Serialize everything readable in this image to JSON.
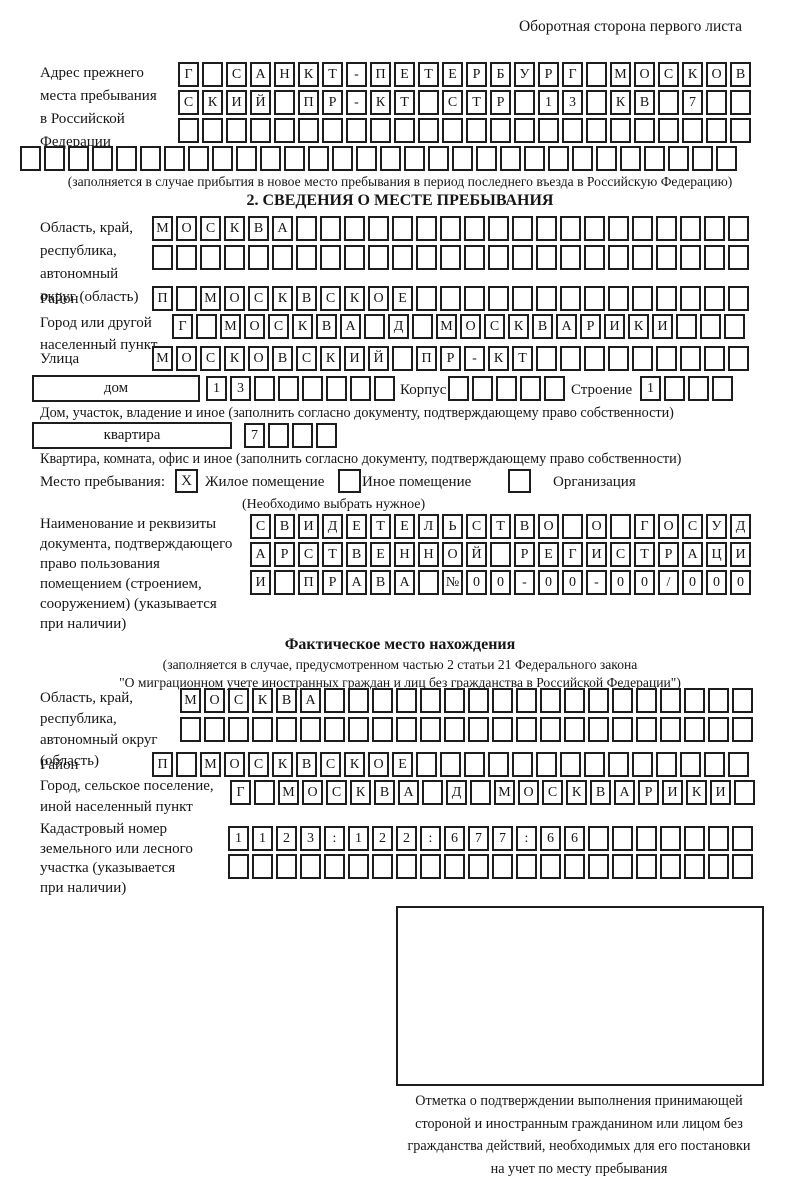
{
  "header": {
    "note": "Оборотная сторона первого листа"
  },
  "prev_address": {
    "label_lines": [
      "Адрес прежнего",
      "места пребывания",
      "в Российской",
      "Федерации"
    ],
    "rows": [
      {
        "text": "Г САНКТ-ПЕТЕРБУРГ МОСКОВ",
        "length": 24
      },
      {
        "text": "СКИЙ ПР-КТ СТР 13 КВ 7",
        "length": 24
      },
      {
        "text": "",
        "length": 24
      },
      {
        "text": "",
        "length": 30
      }
    ],
    "note": "(заполняется в случае прибытия в новое место пребывания в период последнего въезда в Российскую Федерацию)"
  },
  "section2": {
    "title": "2. СВЕДЕНИЯ О МЕСТЕ ПРЕБЫВАНИЯ",
    "region": {
      "label_lines": [
        "Область, край,",
        "республика,",
        "автономный",
        "округ (область)"
      ],
      "rows": [
        {
          "text": "МОСКВА",
          "length": 25
        },
        {
          "text": "",
          "length": 25
        }
      ]
    },
    "district": {
      "label": "Район",
      "row": {
        "text": "П МОСКВСКОЕ",
        "length": 25
      }
    },
    "city": {
      "label_lines": [
        "Город или другой",
        "населенный пункт"
      ],
      "row": {
        "text": "Г МОСКВА Д МОСКВАРИКИ",
        "length": 24
      }
    },
    "street": {
      "label": "Улица",
      "row": {
        "text": "МОСКОВСКИЙ ПР-КТ",
        "length": 25
      }
    },
    "house": {
      "box_label": "дом",
      "cells": {
        "text": "13",
        "length": 8
      },
      "korpus_label": "Корпус",
      "korpus_cells": {
        "text": "",
        "length": 5
      },
      "stroenie_label": "Строение",
      "stroenie_cells": {
        "text": "1",
        "length": 4
      }
    },
    "house_note": "Дом, участок, владение и иное (заполнить согласно документу, подтверждающему право собственности)",
    "apartment": {
      "box_label": "квартира",
      "cells": {
        "text": "7",
        "length": 4
      }
    },
    "apartment_note": "Квартира, комната, офис и иное (заполнить согласно документу, подтверждающему право собственности)",
    "stay_type": {
      "label": "Место пребывания:",
      "options": [
        {
          "label": "Жилое помещение",
          "mark": "X"
        },
        {
          "label": "Иное помещение",
          "mark": ""
        },
        {
          "label": "Организация",
          "mark": ""
        }
      ],
      "note": "(Необходимо выбрать нужное)"
    },
    "doc": {
      "label_lines": [
        "Наименование и реквизиты",
        "документа, подтверждающего",
        "право пользования",
        "помещением (строением,",
        "сооружением) (указывается",
        "при наличии)"
      ],
      "rows": [
        {
          "text": "СВИДЕТЕЛЬСТВО О ГОСУД",
          "length": 21
        },
        {
          "text": "АРСТВЕННОЙ РЕГИСТРАЦИ",
          "length": 21
        },
        {
          "text": "И ПРАВА №00-00-00/000",
          "length": 21
        }
      ]
    }
  },
  "section3": {
    "title": "Фактическое место нахождения",
    "note_lines": [
      "(заполняется в случае, предусмотренном частью 2 статьи 21 Федерального закона",
      "\"О миграционном учете иностранных граждан и лиц без гражданства в Российской Федерации\")"
    ],
    "region": {
      "label_lines": [
        "Область, край,",
        "республика,",
        "автономный округ",
        "(область)"
      ],
      "rows": [
        {
          "text": "МОСКВА",
          "length": 24
        },
        {
          "text": "",
          "length": 24
        }
      ]
    },
    "district": {
      "label": "Район",
      "row": {
        "text": "П МОСКВСКОЕ",
        "length": 25
      }
    },
    "city": {
      "label_lines": [
        "Город, сельское поселение,",
        "иной населенный пункт"
      ],
      "row": {
        "text": "Г МОСКВА Д МОСКВАРИКИ",
        "length": 22
      }
    },
    "cadastre": {
      "label_lines": [
        "Кадастровый номер",
        "земельного или лесного",
        "участка (указывается",
        "при наличии)"
      ],
      "rows": [
        {
          "text": "1123:122:677:66",
          "length": 22
        },
        {
          "text": "",
          "length": 22
        }
      ]
    },
    "stamp_caption_lines": [
      "Отметка о подтверждении выполнения принимающей",
      "стороной и иностранным гражданином или лицом без",
      "гражданства действий, необходимых для его постановки",
      "на учет по месту пребывания"
    ]
  }
}
